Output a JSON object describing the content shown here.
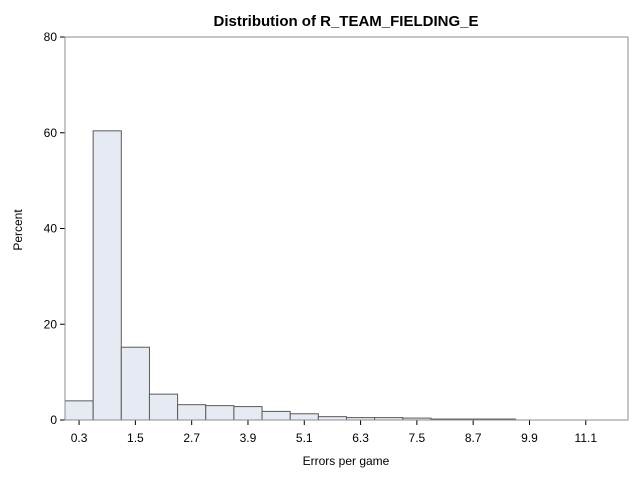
{
  "chart_data": {
    "type": "bar",
    "title": "Distribution of R_TEAM_FIELDING_E",
    "xlabel": "Errors per game",
    "ylabel": "Percent",
    "ylim": [
      0,
      80
    ],
    "yticks": [
      0,
      20,
      40,
      60,
      80
    ],
    "xlim": [
      0.0,
      12.0
    ],
    "xticks": [
      0.3,
      1.5,
      2.7,
      3.9,
      5.1,
      6.3,
      7.5,
      8.7,
      9.9,
      11.1
    ],
    "xtick_labels": [
      "0.3",
      "1.5",
      "2.7",
      "3.9",
      "5.1",
      "6.3",
      "7.5",
      "8.7",
      "9.9",
      "11.1"
    ],
    "bin_width": 0.6,
    "bin_starts": [
      0.0,
      0.6,
      1.2,
      1.8,
      2.4,
      3.0,
      3.6,
      4.2,
      4.8,
      5.4,
      6.0,
      6.6,
      7.2,
      7.8,
      8.4,
      9.0,
      9.6,
      10.2,
      10.8,
      11.4
    ],
    "values": [
      4.0,
      60.4,
      15.2,
      5.4,
      3.2,
      3.0,
      2.8,
      1.8,
      1.3,
      0.7,
      0.5,
      0.5,
      0.4,
      0.2,
      0.2,
      0.2,
      0.0,
      0.0,
      0.0,
      0.0
    ],
    "grid": false,
    "colors": {
      "bar_fill": "#e6eaf2",
      "bar_stroke": "#5a5a5a",
      "frame": "#8c8c8c"
    }
  }
}
